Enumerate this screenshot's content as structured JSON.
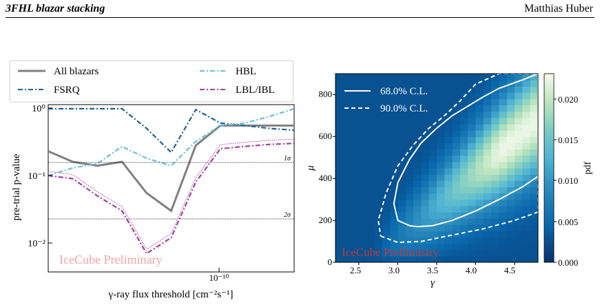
{
  "header": {
    "left": "3FHL blazar stacking",
    "right": "Matthias Huber"
  },
  "left_plot": {
    "xlabel": "γ-ray flux threshold [cm⁻²s⁻¹]",
    "ylabel": "pre-trial p-value",
    "watermark": "IceCube Preliminary",
    "ytick_labels": [
      "10⁰",
      "10⁻¹",
      "10⁻²"
    ],
    "xtick_label": "10⁻¹⁰",
    "sigma_labels": [
      "1σ",
      "2σ"
    ],
    "legend": [
      "All blazars",
      "FSRQ",
      "HBL",
      "LBL/IBL"
    ]
  },
  "right_plot": {
    "xlabel": "γ",
    "ylabel": "μ",
    "colorbar_label": "pdf",
    "watermark": "IceCube Preliminary",
    "xtick_labels": [
      "2.5",
      "3.0",
      "3.5",
      "4.0",
      "4.5"
    ],
    "ytick_labels": [
      "0",
      "200",
      "400",
      "600",
      "800"
    ],
    "cbar_tick_labels": [
      "0.000",
      "0.005",
      "0.010",
      "0.015",
      "0.020"
    ],
    "legend": [
      "68.0% C.L.",
      "90.0% C.L."
    ]
  },
  "chart_data": [
    {
      "type": "line",
      "xscale": "log",
      "yscale": "log",
      "ylim": [
        0.005,
        1.0
      ],
      "xlabel": "γ-ray flux threshold [cm⁻²s⁻¹]",
      "ylabel": "pre-trial p-value",
      "reference_lines": [
        {
          "label": "1σ",
          "y": 0.159
        },
        {
          "label": "2σ",
          "y": 0.0228
        }
      ],
      "x_index": [
        0,
        1,
        2,
        3,
        4,
        5,
        6,
        7,
        8,
        9,
        10
      ],
      "series": [
        {
          "name": "All blazars",
          "color": "#808080",
          "style": "solid",
          "values": [
            0.23,
            0.16,
            0.14,
            0.16,
            0.055,
            0.03,
            0.28,
            0.55,
            0.55,
            0.55,
            0.55
          ]
        },
        {
          "name": "FSRQ",
          "color": "#1f5f99",
          "style": "dashdot",
          "values": [
            0.98,
            0.98,
            0.98,
            0.98,
            0.5,
            0.22,
            0.95,
            0.6,
            0.55,
            0.5,
            0.47
          ]
        },
        {
          "name": "HBL",
          "color": "#6bbfd8",
          "style": "dashdot",
          "values": [
            0.1,
            0.13,
            0.15,
            0.27,
            0.18,
            0.14,
            0.32,
            0.55,
            0.6,
            0.75,
            0.98
          ]
        },
        {
          "name": "LBL/IBL",
          "color": "#a23fa0",
          "style": "dashdot",
          "values": [
            0.1,
            0.09,
            0.05,
            0.03,
            0.007,
            0.012,
            0.08,
            0.25,
            0.27,
            0.29,
            0.3
          ]
        }
      ]
    },
    {
      "type": "heatmap",
      "xlabel": "γ",
      "ylabel": "μ",
      "colorbar_label": "pdf",
      "xlim": [
        2.2,
        4.8
      ],
      "ylim": [
        0,
        900
      ],
      "clim": [
        0.0,
        0.023
      ],
      "colormap": "GnBu_r",
      "contours": [
        {
          "name": "68.0% C.L.",
          "style": "solid",
          "gamma": [
            3.15,
            3.25,
            3.45,
            3.7,
            4.0,
            4.3,
            4.6,
            4.8,
            4.8,
            4.6,
            4.3,
            4.1,
            3.9,
            3.7,
            3.5,
            3.3,
            3.15,
            3.0,
            2.95,
            3.0,
            3.15
          ],
          "mu": [
            175,
            170,
            175,
            200,
            245,
            300,
            360,
            410,
            900,
            870,
            830,
            790,
            745,
            700,
            640,
            570,
            490,
            380,
            280,
            200,
            175
          ]
        },
        {
          "name": "90.0% C.L.",
          "style": "dashed",
          "gamma": [
            2.78,
            3.0,
            3.3,
            3.7,
            4.1,
            4.5,
            4.8,
            4.8,
            4.3,
            4.0,
            3.8,
            3.6,
            3.4,
            3.2,
            3.0,
            2.85,
            2.75,
            2.78
          ],
          "mu": [
            125,
            95,
            100,
            130,
            160,
            200,
            240,
            900,
            900,
            850,
            770,
            700,
            640,
            560,
            460,
            330,
            200,
            125
          ]
        }
      ]
    }
  ]
}
